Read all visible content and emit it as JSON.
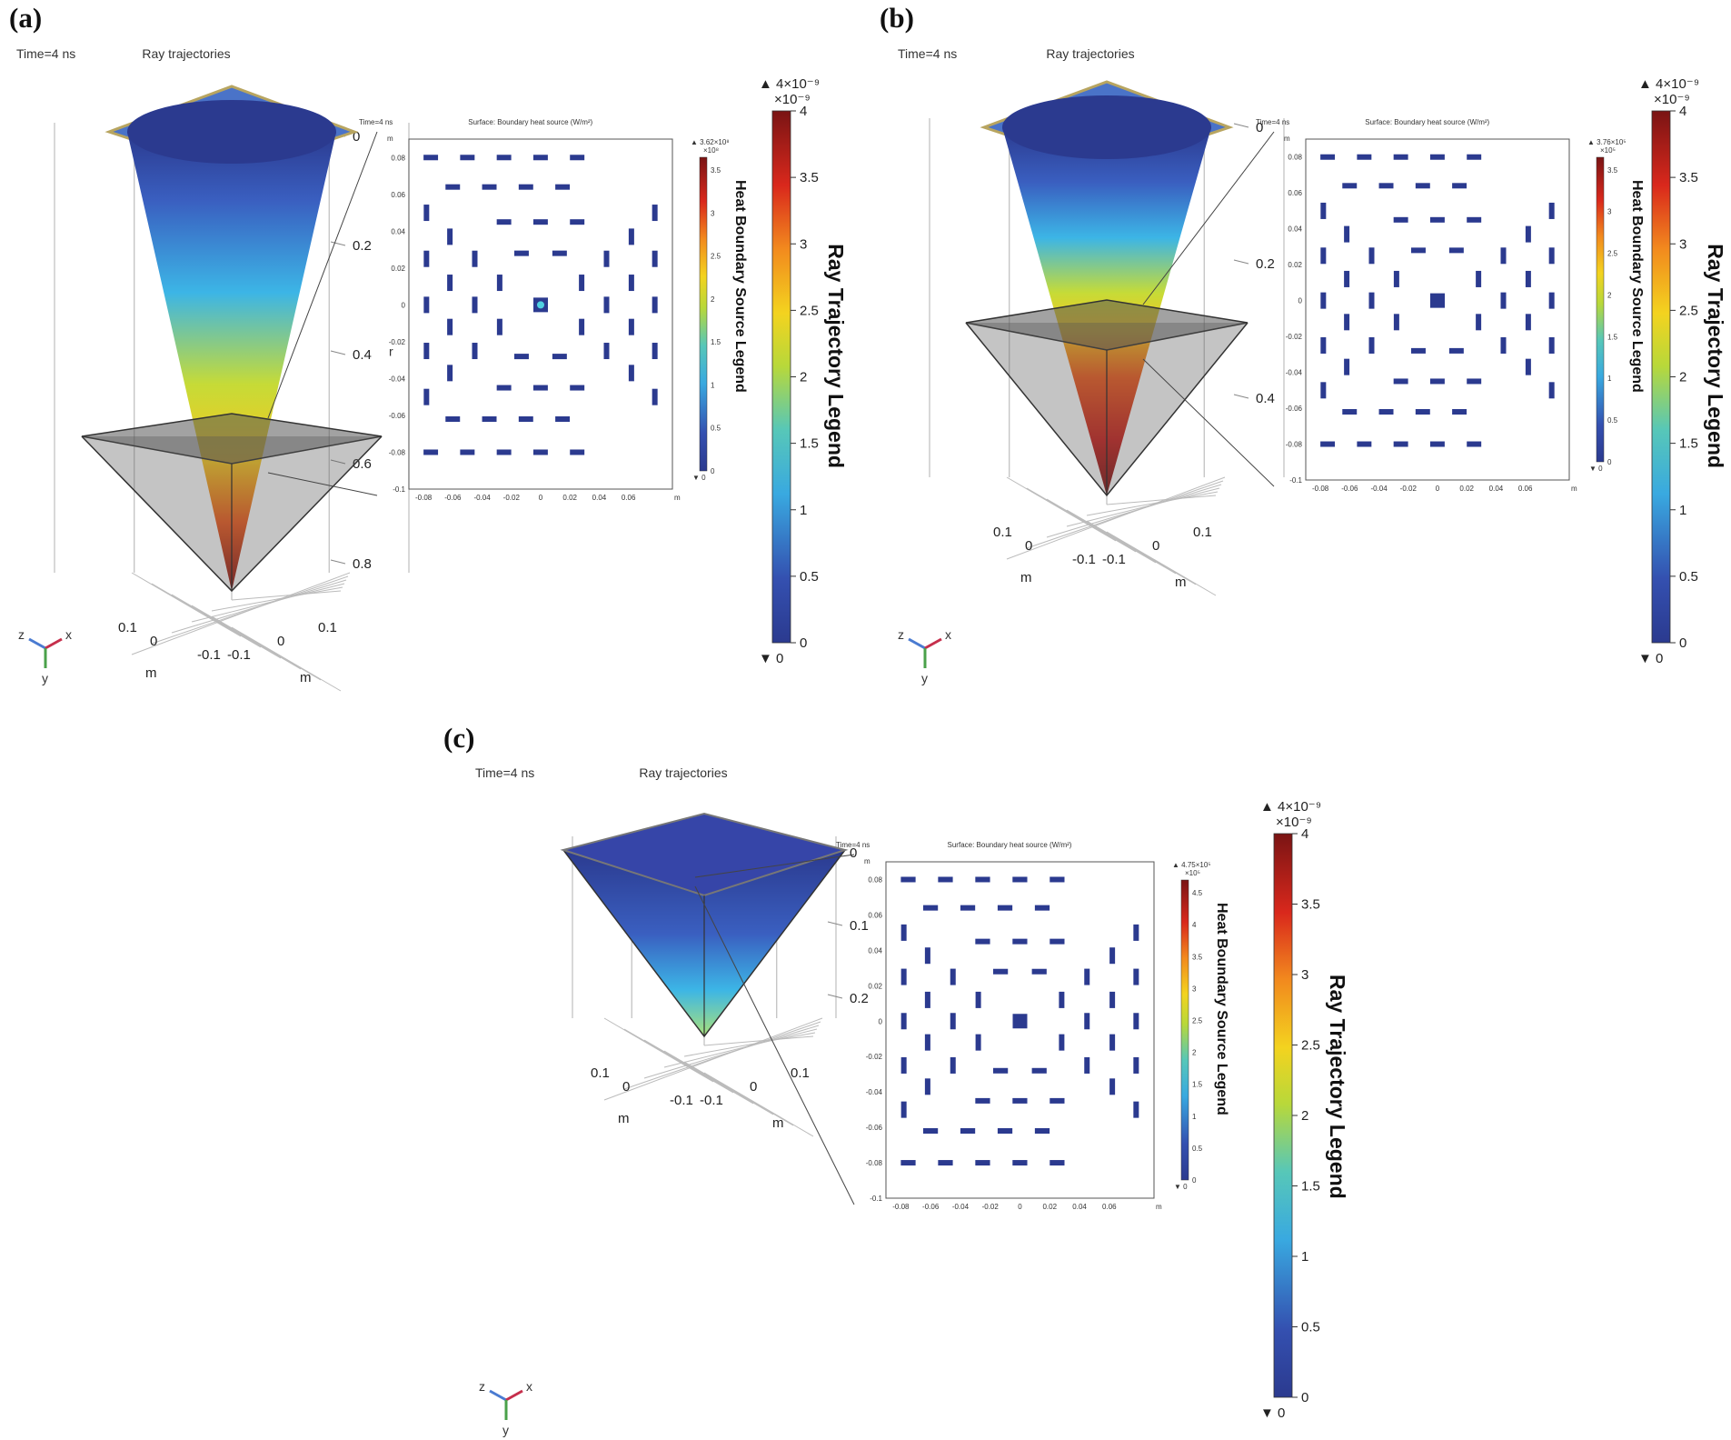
{
  "panels": [
    {
      "id": "a",
      "label": "(a)",
      "time_label": "Time=4 ns",
      "plot_title": "Ray trajectories",
      "depth_ticks": [
        "0",
        "0.2",
        "0.4",
        "0.6",
        "0.8"
      ],
      "base_ticks_left": [
        "0.1",
        "0",
        "-0.1"
      ],
      "base_ticks_right": [
        "0.1",
        "0",
        "-0.1"
      ],
      "axis_unit": "m",
      "ray_legend": {
        "title": "Ray Trajectory Legend",
        "max_label": "▲ 4×10⁻⁹",
        "multiplier": "×10⁻⁹",
        "ticks": [
          "4",
          "3.5",
          "3",
          "2.5",
          "2",
          "1.5",
          "1",
          "0.5",
          "0"
        ],
        "min_label": "▼ 0"
      },
      "inset": {
        "time_label": "Time=4 ns",
        "title": "Surface: Boundary heat source (W/m²)",
        "unit": "m",
        "y_ticks": [
          "0.08",
          "0.06",
          "0.04",
          "0.02",
          "0",
          "-0.02",
          "-0.04",
          "-0.06",
          "-0.08",
          "-0.1"
        ],
        "x_ticks": [
          "-0.08",
          "-0.06",
          "-0.04",
          "-0.02",
          "0",
          "0.02",
          "0.04",
          "0.06"
        ],
        "side_label": "r",
        "legend_title": "Heat Boundary Source Legend",
        "legend_max": "▲ 3.62×10⁸",
        "legend_mult": "×10⁸",
        "legend_ticks": [
          "3.5",
          "3",
          "2.5",
          "2",
          "1.5",
          "1",
          "0.5",
          "0"
        ],
        "legend_min": "▼ 0"
      }
    },
    {
      "id": "b",
      "label": "(b)",
      "time_label": "Time=4 ns",
      "plot_title": "Ray trajectories",
      "depth_ticks": [
        "0",
        "0.2",
        "0.4"
      ],
      "base_ticks_left": [
        "0.1",
        "0",
        "-0.1"
      ],
      "base_ticks_right": [
        "0.1",
        "0",
        "-0.1"
      ],
      "axis_unit": "m",
      "ray_legend": {
        "title": "Ray Trajectory Legend",
        "max_label": "▲ 4×10⁻⁹",
        "multiplier": "×10⁻⁹",
        "ticks": [
          "4",
          "3.5",
          "3",
          "2.5",
          "2",
          "1.5",
          "1",
          "0.5",
          "0"
        ],
        "min_label": "▼ 0"
      },
      "inset": {
        "time_label": "Time=4 ns",
        "title": "Surface: Boundary heat source (W/m²)",
        "unit": "m",
        "y_ticks": [
          "0.08",
          "0.06",
          "0.04",
          "0.02",
          "0",
          "-0.02",
          "-0.04",
          "-0.06",
          "-0.08",
          "-0.1"
        ],
        "x_ticks": [
          "-0.08",
          "-0.06",
          "-0.04",
          "-0.02",
          "0",
          "0.02",
          "0.04",
          "0.06"
        ],
        "side_label": "",
        "legend_title": "Heat Boundary Source Legend",
        "legend_max": "▲ 3.76×10⁵",
        "legend_mult": "×10⁵",
        "legend_ticks": [
          "3.5",
          "3",
          "2.5",
          "2",
          "1.5",
          "1",
          "0.5",
          "0"
        ],
        "legend_min": "▼ 0"
      }
    },
    {
      "id": "c",
      "label": "(c)",
      "time_label": "Time=4 ns",
      "plot_title": "Ray trajectories",
      "depth_ticks": [
        "0",
        "0.1",
        "0.2"
      ],
      "base_ticks_left": [
        "0.1",
        "0",
        "-0.1"
      ],
      "base_ticks_right": [
        "0.1",
        "0",
        "-0.1"
      ],
      "axis_unit": "m",
      "ray_legend": {
        "title": "Ray Trajectory Legend",
        "max_label": "▲ 4×10⁻⁹",
        "multiplier": "×10⁻⁹",
        "ticks": [
          "4",
          "3.5",
          "3",
          "2.5",
          "2",
          "1.5",
          "1",
          "0.5",
          "0"
        ],
        "min_label": "▼ 0"
      },
      "inset": {
        "time_label": "Time=4 ns",
        "title": "Surface: Boundary heat source (W/m²)",
        "unit": "m",
        "y_ticks": [
          "0.08",
          "0.06",
          "0.04",
          "0.02",
          "0",
          "-0.02",
          "-0.04",
          "-0.06",
          "-0.08",
          "-0.1"
        ],
        "x_ticks": [
          "-0.08",
          "-0.06",
          "-0.04",
          "-0.02",
          "0",
          "0.02",
          "0.04",
          "0.06"
        ],
        "side_label": "",
        "legend_title": "Heat Boundary Source Legend",
        "legend_max": "▲ 4.75×10⁵",
        "legend_mult": "×10⁵",
        "legend_ticks": [
          "4.5",
          "4",
          "3.5",
          "3",
          "2.5",
          "2",
          "1.5",
          "1",
          "0.5",
          "0"
        ],
        "legend_min": "▼ 0"
      }
    }
  ],
  "triad": {
    "x": "x",
    "y": "y",
    "z": "z"
  },
  "colors": {
    "jet_low": "#2b3a8f",
    "jet_high": "#7a1414",
    "pad": "#2b3a8f",
    "glass": "#6e6e6e"
  }
}
